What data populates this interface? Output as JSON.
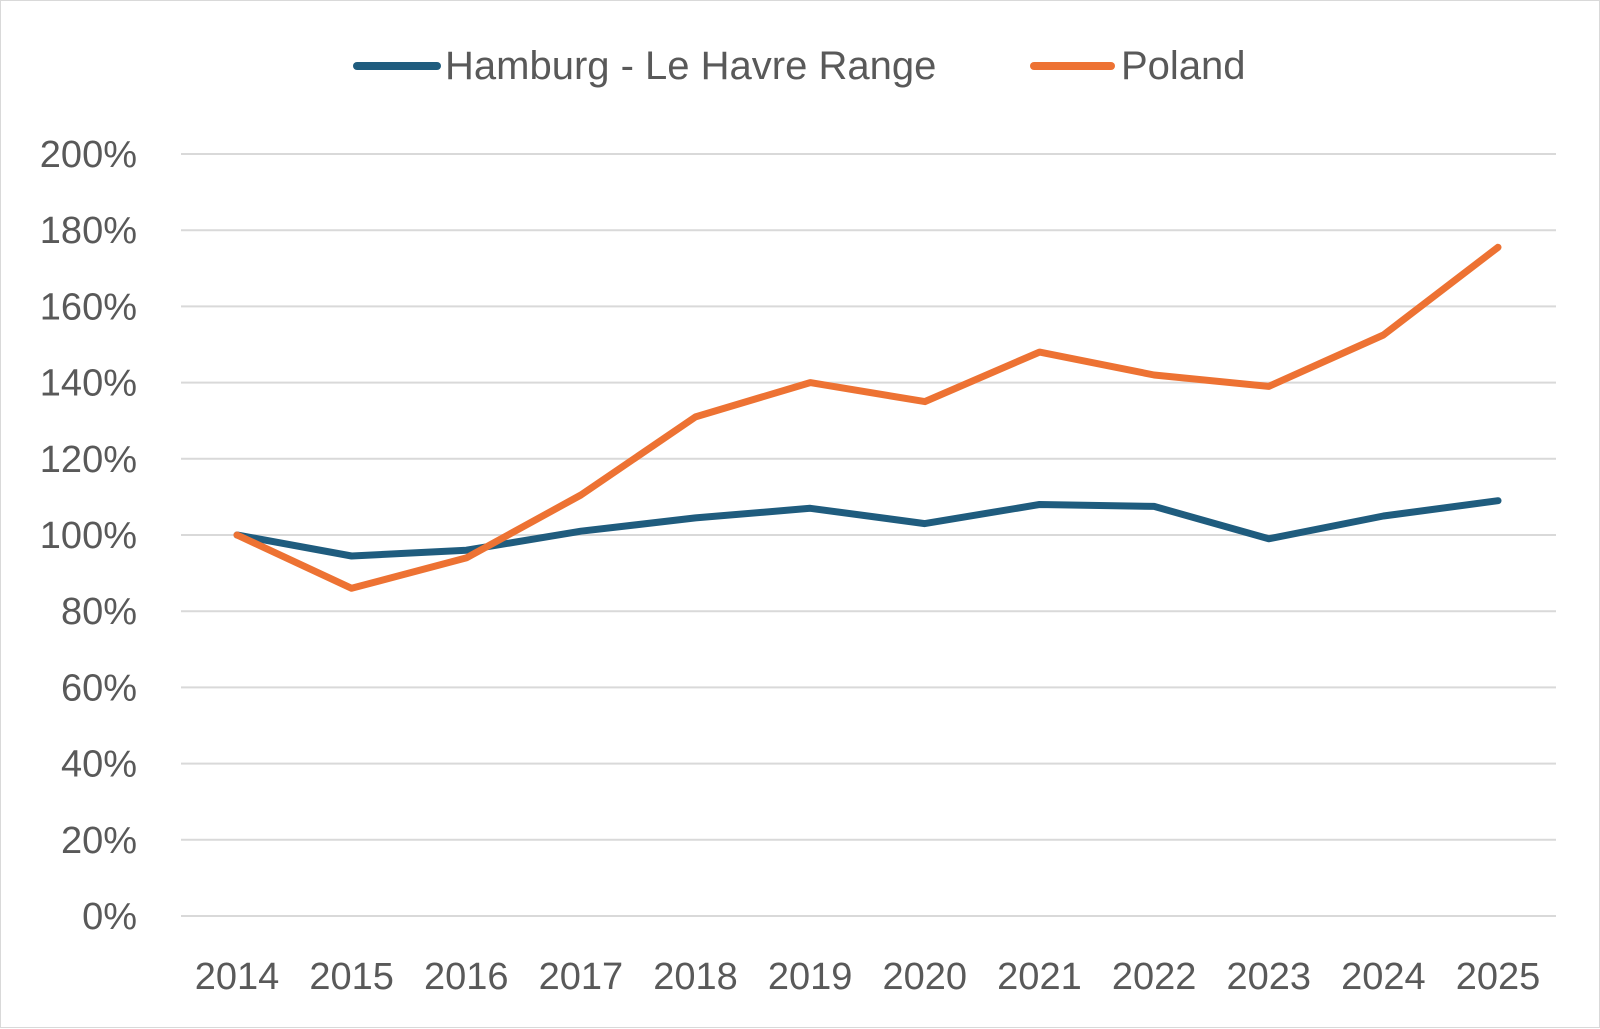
{
  "chart_data": {
    "type": "line",
    "title": "",
    "xlabel": "",
    "ylabel": "",
    "categories": [
      "2014",
      "2015",
      "2016",
      "2017",
      "2018",
      "2019",
      "2020",
      "2021",
      "2022",
      "2023",
      "2024",
      "2025"
    ],
    "y_ticks": [
      "0%",
      "20%",
      "40%",
      "60%",
      "80%",
      "100%",
      "120%",
      "140%",
      "160%",
      "180%",
      "200%"
    ],
    "y_tick_values": [
      0,
      20,
      40,
      60,
      80,
      100,
      120,
      140,
      160,
      180,
      200
    ],
    "ylim": [
      0,
      200
    ],
    "y_unit": "%",
    "grid": true,
    "legend_position": "top-center",
    "series": [
      {
        "name": "Hamburg - Le Havre Range",
        "color": "#1F5C7E",
        "values": [
          100,
          94.5,
          96,
          101,
          104.5,
          107,
          103,
          108,
          107.5,
          99,
          105,
          109
        ]
      },
      {
        "name": "Poland",
        "color": "#ED7233",
        "values": [
          100,
          86,
          94,
          110.5,
          131,
          140,
          135,
          148,
          142,
          139,
          152.5,
          175.5
        ]
      }
    ]
  }
}
